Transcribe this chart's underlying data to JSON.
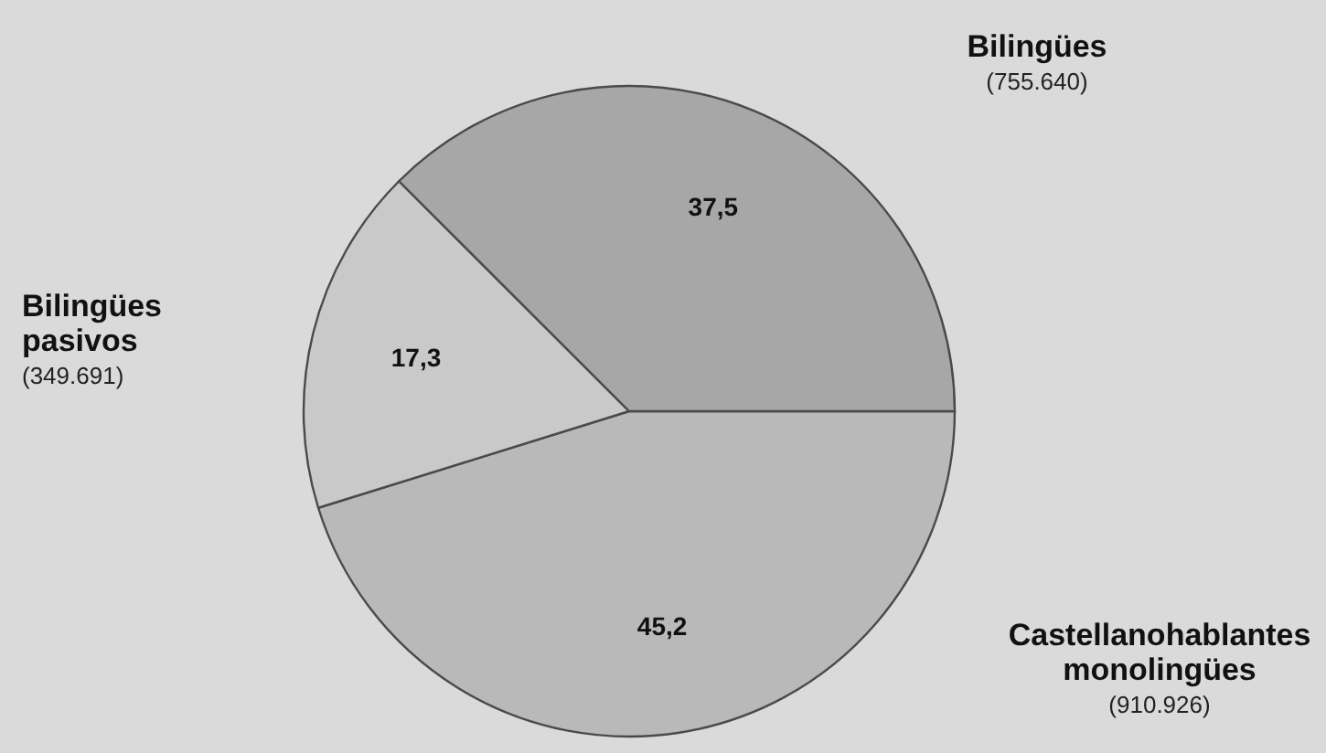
{
  "chart_data": {
    "type": "pie",
    "categories": [
      "Castellanohablantes\nmonolingües",
      "Bilingües\npasivos",
      "Bilingües"
    ],
    "values": [
      45.2,
      17.3,
      37.5
    ],
    "colors": [
      "#b9b9b9",
      "#c9c9c9",
      "#a7a7a7"
    ],
    "value_labels": [
      "45,2",
      "17,3",
      "37,5"
    ],
    "annotations": [
      "(910.926)",
      "(349.691)",
      "(755.640)"
    ]
  }
}
